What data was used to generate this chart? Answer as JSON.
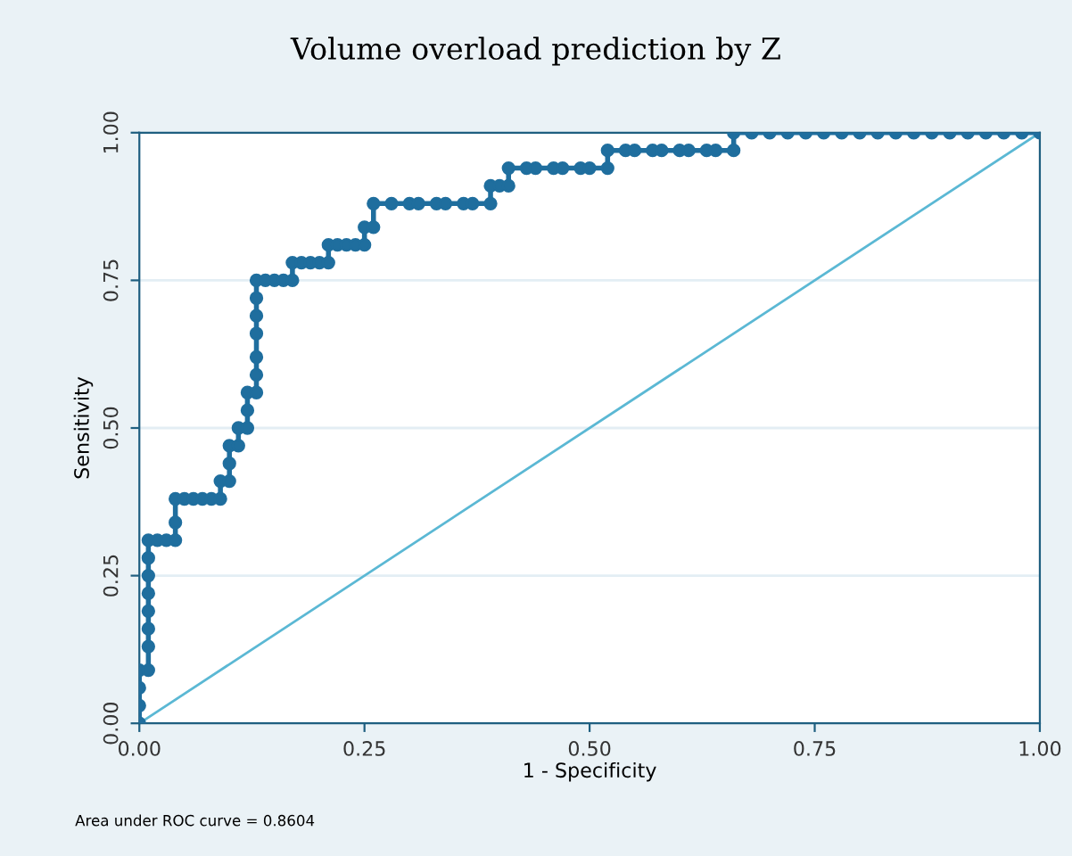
{
  "chart_data": {
    "type": "line",
    "title": "Volume overload prediction by Z",
    "xlabel": "1 - Specificity",
    "ylabel": "Sensitivity",
    "annotations": [
      "Area under ROC curve = 0.8604"
    ],
    "xlim": [
      0,
      1
    ],
    "ylim": [
      0,
      1
    ],
    "xticks": [
      {
        "value": 0,
        "label": "0.00"
      },
      {
        "value": 0.25,
        "label": "0.25"
      },
      {
        "value": 0.5,
        "label": "0.50"
      },
      {
        "value": 0.75,
        "label": "0.75"
      },
      {
        "value": 1,
        "label": "1.00"
      }
    ],
    "yticks": [
      {
        "value": 0,
        "label": "0.00"
      },
      {
        "value": 0.25,
        "label": "0.25"
      },
      {
        "value": 0.5,
        "label": "0.50"
      },
      {
        "value": 0.75,
        "label": "0.75"
      },
      {
        "value": 1,
        "label": "1.00"
      }
    ],
    "grid": "y",
    "legend": false,
    "series": [
      {
        "color": "#1f6e9e",
        "marker": "circle",
        "x": [
          0,
          0,
          0,
          0,
          0.01,
          0.01,
          0.01,
          0.01,
          0.01,
          0.01,
          0.01,
          0.01,
          0.02,
          0.03,
          0.04,
          0.04,
          0.04,
          0.05,
          0.06,
          0.07,
          0.08,
          0.09,
          0.09,
          0.1,
          0.1,
          0.1,
          0.11,
          0.11,
          0.12,
          0.12,
          0.12,
          0.13,
          0.13,
          0.13,
          0.13,
          0.13,
          0.13,
          0.13,
          0.14,
          0.15,
          0.16,
          0.17,
          0.17,
          0.18,
          0.19,
          0.2,
          0.21,
          0.21,
          0.22,
          0.23,
          0.24,
          0.25,
          0.25,
          0.26,
          0.26,
          0.28,
          0.3,
          0.31,
          0.33,
          0.34,
          0.36,
          0.37,
          0.39,
          0.39,
          0.4,
          0.41,
          0.41,
          0.43,
          0.44,
          0.46,
          0.47,
          0.49,
          0.5,
          0.52,
          0.52,
          0.54,
          0.55,
          0.57,
          0.58,
          0.6,
          0.61,
          0.63,
          0.64,
          0.66,
          0.66,
          0.68,
          0.7,
          0.72,
          0.74,
          0.76,
          0.78,
          0.8,
          0.82,
          0.84,
          0.86,
          0.88,
          0.9,
          0.92,
          0.94,
          0.96,
          0.98,
          1
        ],
        "values": [
          0,
          0.03,
          0.06,
          0.09,
          0.09,
          0.13,
          0.16,
          0.19,
          0.22,
          0.25,
          0.28,
          0.31,
          0.31,
          0.31,
          0.31,
          0.34,
          0.38,
          0.38,
          0.38,
          0.38,
          0.38,
          0.38,
          0.41,
          0.41,
          0.44,
          0.47,
          0.47,
          0.5,
          0.5,
          0.53,
          0.56,
          0.56,
          0.59,
          0.62,
          0.66,
          0.69,
          0.72,
          0.75,
          0.75,
          0.75,
          0.75,
          0.75,
          0.78,
          0.78,
          0.78,
          0.78,
          0.78,
          0.81,
          0.81,
          0.81,
          0.81,
          0.81,
          0.84,
          0.84,
          0.88,
          0.88,
          0.88,
          0.88,
          0.88,
          0.88,
          0.88,
          0.88,
          0.88,
          0.91,
          0.91,
          0.91,
          0.94,
          0.94,
          0.94,
          0.94,
          0.94,
          0.94,
          0.94,
          0.94,
          0.97,
          0.97,
          0.97,
          0.97,
          0.97,
          0.97,
          0.97,
          0.97,
          0.97,
          0.97,
          1,
          1,
          1,
          1,
          1,
          1,
          1,
          1,
          1,
          1,
          1,
          1,
          1,
          1,
          1,
          1,
          1,
          1
        ]
      },
      {
        "color": "#5bb8d4",
        "marker": "none",
        "x": [
          0,
          1
        ],
        "values": [
          0,
          1
        ]
      }
    ]
  }
}
